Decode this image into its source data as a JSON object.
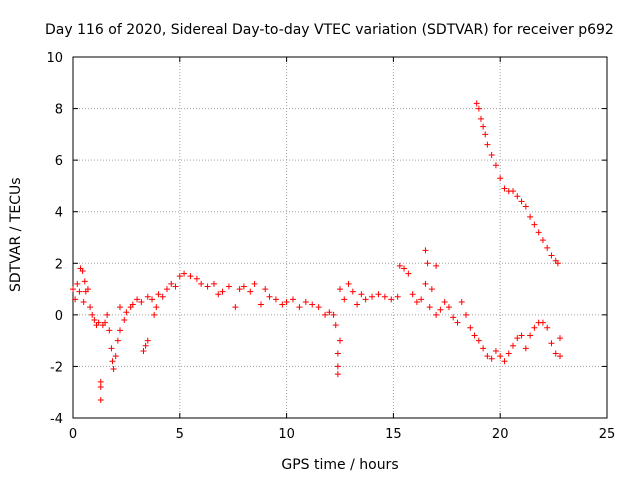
{
  "chart_data": {
    "type": "scatter",
    "title": "Day 116 of 2020, Sidereal Day-to-day VTEC variation (SDTVAR) for receiver p692",
    "xlabel": "GPS time / hours",
    "ylabel": "SDTVAR / TECUs",
    "xlim": [
      0,
      25
    ],
    "ylim": [
      -4,
      10
    ],
    "xticks": [
      0,
      5,
      10,
      15,
      20,
      25
    ],
    "yticks": [
      -4,
      -2,
      0,
      2,
      4,
      6,
      8,
      10
    ],
    "grid": true,
    "marker": "+",
    "color": "#ff0000",
    "series": [
      {
        "name": "SDTVAR",
        "points": [
          [
            0.0,
            1.0
          ],
          [
            0.1,
            0.6
          ],
          [
            0.2,
            1.2
          ],
          [
            0.3,
            0.9
          ],
          [
            0.35,
            1.8
          ],
          [
            0.45,
            1.7
          ],
          [
            0.5,
            0.5
          ],
          [
            0.55,
            1.3
          ],
          [
            0.6,
            0.9
          ],
          [
            0.7,
            1.0
          ],
          [
            0.8,
            0.3
          ],
          [
            0.9,
            0.0
          ],
          [
            1.0,
            -0.2
          ],
          [
            1.1,
            -0.4
          ],
          [
            1.2,
            -0.3
          ],
          [
            1.3,
            -2.6
          ],
          [
            1.3,
            -2.8
          ],
          [
            1.3,
            -3.3
          ],
          [
            1.4,
            -0.4
          ],
          [
            1.5,
            -0.3
          ],
          [
            1.6,
            0.0
          ],
          [
            1.7,
            -0.6
          ],
          [
            1.8,
            -1.3
          ],
          [
            1.85,
            -1.8
          ],
          [
            1.9,
            -2.1
          ],
          [
            2.0,
            -1.6
          ],
          [
            2.1,
            -1.0
          ],
          [
            2.2,
            -0.6
          ],
          [
            2.2,
            0.3
          ],
          [
            2.4,
            -0.2
          ],
          [
            2.5,
            0.1
          ],
          [
            2.7,
            0.3
          ],
          [
            2.8,
            0.4
          ],
          [
            3.0,
            0.6
          ],
          [
            3.2,
            0.5
          ],
          [
            3.3,
            -1.4
          ],
          [
            3.4,
            -1.2
          ],
          [
            3.5,
            -1.0
          ],
          [
            3.5,
            0.7
          ],
          [
            3.7,
            0.6
          ],
          [
            3.8,
            0.0
          ],
          [
            3.9,
            0.3
          ],
          [
            4.0,
            0.8
          ],
          [
            4.2,
            0.7
          ],
          [
            4.4,
            1.0
          ],
          [
            4.6,
            1.2
          ],
          [
            4.8,
            1.1
          ],
          [
            5.0,
            1.5
          ],
          [
            5.2,
            1.6
          ],
          [
            5.5,
            1.5
          ],
          [
            5.8,
            1.4
          ],
          [
            6.0,
            1.2
          ],
          [
            6.3,
            1.1
          ],
          [
            6.6,
            1.2
          ],
          [
            6.8,
            0.8
          ],
          [
            7.0,
            0.9
          ],
          [
            7.3,
            1.1
          ],
          [
            7.6,
            0.3
          ],
          [
            7.8,
            1.0
          ],
          [
            8.0,
            1.1
          ],
          [
            8.3,
            0.9
          ],
          [
            8.5,
            1.2
          ],
          [
            8.8,
            0.4
          ],
          [
            9.0,
            1.0
          ],
          [
            9.2,
            0.7
          ],
          [
            9.5,
            0.6
          ],
          [
            9.8,
            0.4
          ],
          [
            10.0,
            0.5
          ],
          [
            10.3,
            0.6
          ],
          [
            10.6,
            0.3
          ],
          [
            10.9,
            0.5
          ],
          [
            11.2,
            0.4
          ],
          [
            11.5,
            0.3
          ],
          [
            11.8,
            0.0
          ],
          [
            12.0,
            0.1
          ],
          [
            12.2,
            0.0
          ],
          [
            12.3,
            -0.4
          ],
          [
            12.4,
            -1.5
          ],
          [
            12.4,
            -2.0
          ],
          [
            12.4,
            -2.3
          ],
          [
            12.5,
            -1.0
          ],
          [
            12.5,
            1.0
          ],
          [
            12.7,
            0.6
          ],
          [
            12.9,
            1.2
          ],
          [
            13.1,
            0.9
          ],
          [
            13.3,
            0.4
          ],
          [
            13.5,
            0.8
          ],
          [
            13.7,
            0.6
          ],
          [
            14.0,
            0.7
          ],
          [
            14.3,
            0.8
          ],
          [
            14.6,
            0.7
          ],
          [
            14.9,
            0.6
          ],
          [
            15.2,
            0.7
          ],
          [
            15.3,
            1.9
          ],
          [
            15.5,
            1.8
          ],
          [
            15.7,
            1.6
          ],
          [
            15.9,
            0.8
          ],
          [
            16.1,
            0.5
          ],
          [
            16.3,
            0.6
          ],
          [
            16.5,
            2.5
          ],
          [
            16.5,
            1.2
          ],
          [
            16.6,
            2.0
          ],
          [
            16.7,
            0.3
          ],
          [
            16.8,
            1.0
          ],
          [
            17.0,
            1.9
          ],
          [
            17.0,
            0.0
          ],
          [
            17.2,
            0.2
          ],
          [
            17.4,
            0.5
          ],
          [
            17.6,
            0.3
          ],
          [
            17.8,
            -0.1
          ],
          [
            18.0,
            -0.3
          ],
          [
            18.2,
            0.5
          ],
          [
            18.4,
            0.0
          ],
          [
            18.6,
            -0.5
          ],
          [
            18.8,
            -0.8
          ],
          [
            19.0,
            -1.0
          ],
          [
            19.2,
            -1.3
          ],
          [
            19.4,
            -1.6
          ],
          [
            19.6,
            -1.7
          ],
          [
            19.8,
            -1.4
          ],
          [
            20.0,
            -1.6
          ],
          [
            20.2,
            -1.8
          ],
          [
            20.4,
            -1.5
          ],
          [
            20.6,
            -1.2
          ],
          [
            20.8,
            -0.9
          ],
          [
            21.0,
            -0.8
          ],
          [
            21.2,
            -1.3
          ],
          [
            21.4,
            -0.8
          ],
          [
            21.6,
            -0.5
          ],
          [
            21.8,
            -0.3
          ],
          [
            22.0,
            -0.3
          ],
          [
            22.2,
            -0.5
          ],
          [
            22.4,
            -1.1
          ],
          [
            22.6,
            -1.5
          ],
          [
            22.8,
            -1.6
          ],
          [
            22.8,
            -0.9
          ],
          [
            18.9,
            8.2
          ],
          [
            19.0,
            8.0
          ],
          [
            19.1,
            7.6
          ],
          [
            19.2,
            7.3
          ],
          [
            19.3,
            7.0
          ],
          [
            19.4,
            6.6
          ],
          [
            19.6,
            6.2
          ],
          [
            19.8,
            5.8
          ],
          [
            20.0,
            5.3
          ],
          [
            20.2,
            4.9
          ],
          [
            20.4,
            4.8
          ],
          [
            20.6,
            4.8
          ],
          [
            20.8,
            4.6
          ],
          [
            21.0,
            4.4
          ],
          [
            21.2,
            4.2
          ],
          [
            21.4,
            3.8
          ],
          [
            21.6,
            3.5
          ],
          [
            21.8,
            3.2
          ],
          [
            22.0,
            2.9
          ],
          [
            22.2,
            2.6
          ],
          [
            22.4,
            2.3
          ],
          [
            22.6,
            2.1
          ],
          [
            22.7,
            2.0
          ]
        ]
      }
    ]
  }
}
